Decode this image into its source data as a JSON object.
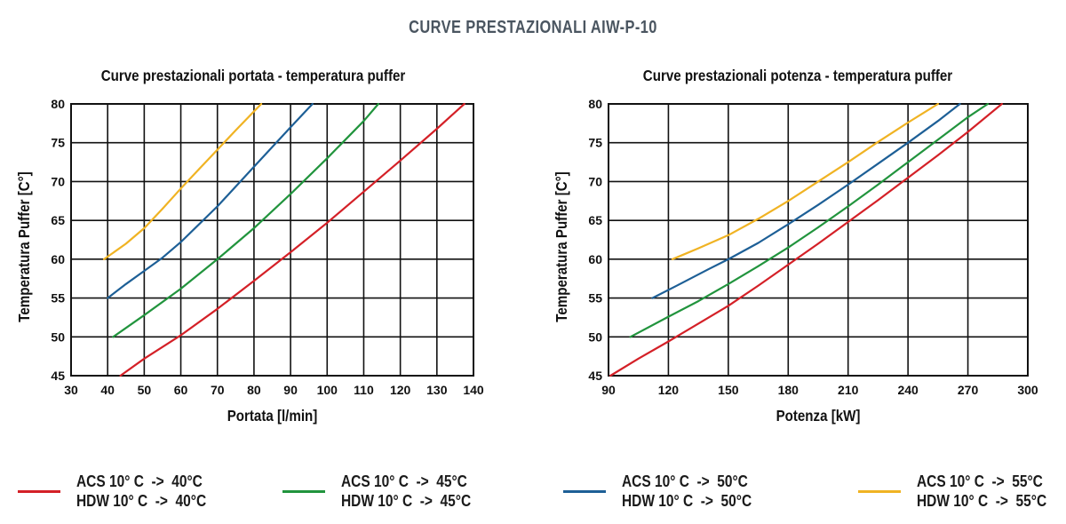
{
  "title": "CURVE PRESTAZIONALI AIW-P-10",
  "colors": {
    "title": "#4a5560",
    "red": "#d42027",
    "green": "#21943d",
    "blue": "#1d5f96",
    "yellow": "#f0b323",
    "grid": "#111111"
  },
  "legend": [
    {
      "line1": "ACS 10° C  ->  40°C",
      "line2": "HDW 10° C  ->  40°C",
      "color": "#d42027"
    },
    {
      "line1": "ACS 10° C  ->  45°C",
      "line2": "HDW 10° C  ->  45°C",
      "color": "#21943d"
    },
    {
      "line1": "ACS 10° C  ->  50°C",
      "line2": "HDW 10° C  ->  50°C",
      "color": "#1d5f96"
    },
    {
      "line1": "ACS 10° C  ->  55°C",
      "line2": "HDW 10° C  ->  55°C",
      "color": "#f0b323"
    }
  ],
  "chart_data": [
    {
      "type": "line",
      "title": "Curve prestazionali portata - temperatura puffer",
      "xlabel": "Portata [l/min]",
      "ylabel": "Temperatura  Puffer [C°]",
      "xlim": [
        30,
        140
      ],
      "ylim": [
        45,
        80
      ],
      "xticks": [
        30,
        40,
        50,
        60,
        70,
        80,
        90,
        100,
        110,
        120,
        130,
        140
      ],
      "yticks": [
        45,
        50,
        55,
        60,
        65,
        70,
        75,
        80
      ],
      "grid": true,
      "series": [
        {
          "name": "ACS 10° C  ->  40°C",
          "color": "#d42027",
          "x": [
            43.5,
            50,
            60,
            70,
            80,
            90,
            100,
            110,
            120,
            130,
            137.5
          ],
          "y": [
            45,
            47.2,
            50.2,
            53.6,
            57.2,
            60.9,
            64.7,
            68.7,
            72.7,
            76.8,
            80
          ]
        },
        {
          "name": "ACS 10° C  ->  45°C",
          "color": "#21943d",
          "x": [
            41.5,
            50,
            60,
            70,
            80,
            90,
            100,
            110,
            114
          ],
          "y": [
            50,
            52.8,
            56.2,
            60,
            64,
            68.4,
            73,
            77.8,
            80
          ]
        },
        {
          "name": "ACS 10° C  ->  50°C",
          "color": "#1d5f96",
          "x": [
            40,
            45,
            50,
            55,
            60,
            70,
            80,
            90,
            96
          ],
          "y": [
            55,
            56.8,
            58.5,
            60.2,
            62.2,
            66.8,
            71.9,
            77,
            80
          ]
        },
        {
          "name": "ACS 10° C  ->  55°C",
          "color": "#f0b323",
          "x": [
            39,
            45,
            50,
            55,
            60,
            65,
            70,
            75,
            82
          ],
          "y": [
            60,
            62,
            64,
            66.5,
            69.1,
            71.6,
            74.1,
            76.6,
            80
          ]
        }
      ]
    },
    {
      "type": "line",
      "title": "Curve prestazionali potenza - temperatura puffer",
      "xlabel": "Potenza [kW]",
      "ylabel": "Temperatura  Puffer [C°]",
      "xlim": [
        90,
        300
      ],
      "ylim": [
        45,
        80
      ],
      "xticks": [
        90,
        120,
        150,
        180,
        210,
        240,
        270,
        300
      ],
      "yticks": [
        45,
        50,
        55,
        60,
        65,
        70,
        75,
        80
      ],
      "grid": true,
      "series": [
        {
          "name": "ACS 10° C  ->  40°C",
          "color": "#d42027",
          "x": [
            91,
            105,
            120,
            135,
            150,
            165,
            180,
            195,
            210,
            225,
            240,
            255,
            270,
            287
          ],
          "y": [
            45,
            47.2,
            49.4,
            51.7,
            54,
            56.6,
            59.3,
            62,
            64.8,
            67.6,
            70.5,
            73.4,
            76.4,
            80
          ]
        },
        {
          "name": "ACS 10° C  ->  45°C",
          "color": "#21943d",
          "x": [
            101,
            120,
            135,
            150,
            165,
            180,
            195,
            210,
            225,
            240,
            255,
            270,
            280
          ],
          "y": [
            50,
            52.6,
            54.6,
            56.8,
            59.1,
            61.5,
            64.1,
            66.8,
            69.6,
            72.5,
            75.4,
            78.3,
            80
          ]
        },
        {
          "name": "ACS 10° C  ->  50°C",
          "color": "#1d5f96",
          "x": [
            112,
            125,
            140,
            150,
            165,
            180,
            195,
            210,
            225,
            240,
            255,
            266
          ],
          "y": [
            55,
            56.7,
            58.7,
            60,
            62.1,
            64.5,
            67,
            69.6,
            72.3,
            75,
            77.8,
            80
          ]
        },
        {
          "name": "ACS 10° C  ->  55°C",
          "color": "#f0b323",
          "x": [
            122,
            135,
            150,
            165,
            180,
            195,
            210,
            225,
            240,
            255
          ],
          "y": [
            60,
            61.4,
            63.1,
            65.2,
            67.5,
            70,
            72.5,
            75.1,
            77.6,
            80
          ]
        }
      ]
    }
  ]
}
